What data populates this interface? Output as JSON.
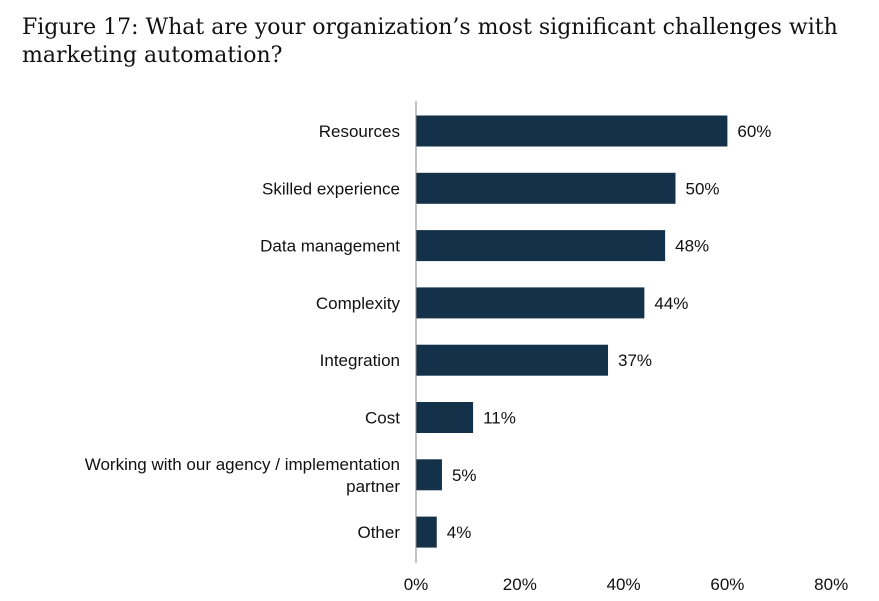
{
  "title": "Figure 17: What are your organization’s most significant challenges with marketing automation?",
  "colors": {
    "bar": "#14314a",
    "axis": "#888888",
    "text": "#111111"
  },
  "chart_data": {
    "type": "bar",
    "orientation": "horizontal",
    "categories": [
      [
        "Resources"
      ],
      [
        "Skilled experience"
      ],
      [
        "Data management"
      ],
      [
        "Complexity"
      ],
      [
        "Integration"
      ],
      [
        "Cost"
      ],
      [
        "Working with our agency / implementation",
        "partner"
      ],
      [
        "Other"
      ]
    ],
    "values": [
      60,
      50,
      48,
      44,
      37,
      11,
      5,
      4
    ],
    "value_labels": [
      "60%",
      "50%",
      "48%",
      "44%",
      "37%",
      "11%",
      "5%",
      "4%"
    ],
    "xlim": [
      0,
      80
    ],
    "xticks": [
      0,
      20,
      40,
      60,
      80
    ],
    "xtick_labels": [
      "0%",
      "20%",
      "40%",
      "60%",
      "80%"
    ],
    "grid": false,
    "legend": "none"
  }
}
